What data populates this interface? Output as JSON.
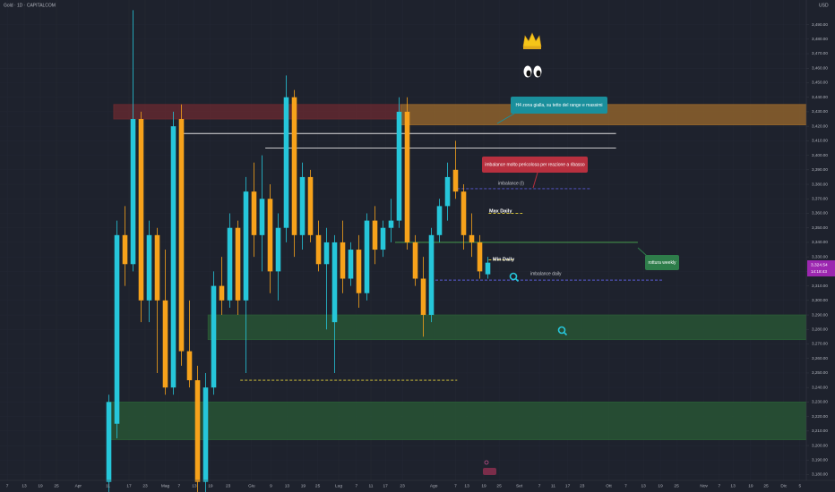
{
  "chart_data": {
    "type": "candlestick",
    "symbol": "Gold · 1D · CAPITALCOM",
    "currency": "USD",
    "up_color": "#26c6da",
    "down_color": "#f7a21b",
    "grid": true,
    "xlim": [
      -13.5,
      86.5
    ],
    "ylim": [
      3176,
      3507
    ],
    "x": [
      0,
      1,
      2,
      3,
      4,
      5,
      6,
      7,
      8,
      9,
      10,
      11,
      12,
      13,
      14,
      15,
      16,
      17,
      18,
      19,
      20,
      21,
      22,
      23,
      24,
      25,
      26,
      27,
      28,
      29,
      30,
      31,
      32,
      33,
      34,
      35,
      36,
      37,
      38,
      39,
      40,
      41,
      42,
      43,
      44,
      45,
      46,
      47
    ],
    "open": [
      3175,
      3215,
      3345,
      3325,
      3425,
      3300,
      3345,
      3300,
      3240,
      3425,
      3265,
      3245,
      3175,
      3240,
      3310,
      3300,
      3350,
      3300,
      3375,
      3345,
      3370,
      3320,
      3350,
      3440,
      3345,
      3385,
      3345,
      3325,
      3285,
      3340,
      3315,
      3335,
      3305,
      3355,
      3335,
      3350,
      3355,
      3430,
      3340,
      3315,
      3290,
      3345,
      3365,
      3390,
      3375,
      3345,
      3340,
      3318
    ],
    "high": [
      3235,
      3355,
      3365,
      3500,
      3430,
      3355,
      3350,
      3335,
      3430,
      3435,
      3300,
      3255,
      3250,
      3320,
      3330,
      3360,
      3355,
      3385,
      3395,
      3400,
      3380,
      3360,
      3455,
      3445,
      3395,
      3390,
      3355,
      3350,
      3345,
      3355,
      3340,
      3345,
      3360,
      3365,
      3355,
      3370,
      3440,
      3440,
      3345,
      3330,
      3350,
      3370,
      3395,
      3410,
      3380,
      3360,
      3345,
      3330
    ],
    "low": [
      3165,
      3205,
      3310,
      3320,
      3285,
      3285,
      3250,
      3235,
      3235,
      3255,
      3240,
      3155,
      3160,
      3235,
      3290,
      3295,
      3290,
      3250,
      3330,
      3320,
      3305,
      3300,
      3340,
      3330,
      3335,
      3340,
      3320,
      3280,
      3250,
      3305,
      3310,
      3295,
      3300,
      3325,
      3330,
      3340,
      3350,
      3335,
      3310,
      3275,
      3285,
      3340,
      3355,
      3370,
      3335,
      3330,
      3315,
      3315
    ],
    "close": [
      3230,
      3345,
      3325,
      3425,
      3300,
      3345,
      3300,
      3240,
      3420,
      3265,
      3245,
      3175,
      3240,
      3310,
      3300,
      3350,
      3300,
      3375,
      3345,
      3370,
      3320,
      3350,
      3440,
      3345,
      3385,
      3345,
      3325,
      3340,
      3340,
      3315,
      3335,
      3305,
      3355,
      3335,
      3350,
      3355,
      3430,
      3340,
      3315,
      3290,
      3345,
      3365,
      3385,
      3375,
      3345,
      3340,
      3320,
      3326
    ],
    "yticks": [
      {
        "value": 3180,
        "label": "3,180.00"
      },
      {
        "value": 3190,
        "label": "3,190.00"
      },
      {
        "value": 3200,
        "label": "3,200.00"
      },
      {
        "value": 3210,
        "label": "3,210.00"
      },
      {
        "value": 3220,
        "label": "3,220.00"
      },
      {
        "value": 3230,
        "label": "3,230.00"
      },
      {
        "value": 3240,
        "label": "3,240.00"
      },
      {
        "value": 3250,
        "label": "3,250.00"
      },
      {
        "value": 3260,
        "label": "3,260.00"
      },
      {
        "value": 3270,
        "label": "3,270.00"
      },
      {
        "value": 3280,
        "label": "3,280.00"
      },
      {
        "value": 3290,
        "label": "3,290.00"
      },
      {
        "value": 3300,
        "label": "3,300.00"
      },
      {
        "value": 3310,
        "label": "3,310.00"
      },
      {
        "value": 3320,
        "label": "3,320.00"
      },
      {
        "value": 3330,
        "label": "3,330.00"
      },
      {
        "value": 3340,
        "label": "3,340.00"
      },
      {
        "value": 3350,
        "label": "3,350.00"
      },
      {
        "value": 3360,
        "label": "3,360.00"
      },
      {
        "value": 3370,
        "label": "3,370.00"
      },
      {
        "value": 3380,
        "label": "3,380.00"
      },
      {
        "value": 3390,
        "label": "3,390.00"
      },
      {
        "value": 3400,
        "label": "3,400.00"
      },
      {
        "value": 3410,
        "label": "3,410.00"
      },
      {
        "value": 3420,
        "label": "3,420.00"
      },
      {
        "value": 3430,
        "label": "3,430.00"
      },
      {
        "value": 3440,
        "label": "3,440.00"
      },
      {
        "value": 3450,
        "label": "3,450.00"
      },
      {
        "value": 3460,
        "label": "3,460.00"
      },
      {
        "value": 3470,
        "label": "3,470.00"
      },
      {
        "value": 3480,
        "label": "3,480.00"
      },
      {
        "value": 3490,
        "label": "3,490.00"
      }
    ],
    "xticks": [
      {
        "value": -12.6,
        "label": "7"
      },
      {
        "value": -10.5,
        "label": "13"
      },
      {
        "value": -8.5,
        "label": "19"
      },
      {
        "value": -6.5,
        "label": "25"
      },
      {
        "value": -3.8,
        "label": "Apr"
      },
      {
        "value": -0.1,
        "label": "11"
      },
      {
        "value": 2.5,
        "label": "17"
      },
      {
        "value": 4.5,
        "label": "23"
      },
      {
        "value": 7,
        "label": "Mag"
      },
      {
        "value": 8.7,
        "label": "7"
      },
      {
        "value": 10.6,
        "label": "13"
      },
      {
        "value": 12.6,
        "label": "19"
      },
      {
        "value": 14.8,
        "label": "23"
      },
      {
        "value": 17.7,
        "label": "Giu"
      },
      {
        "value": 20.1,
        "label": "9"
      },
      {
        "value": 22.1,
        "label": "13"
      },
      {
        "value": 24.1,
        "label": "19"
      },
      {
        "value": 25.9,
        "label": "25"
      },
      {
        "value": 28.5,
        "label": "Lug"
      },
      {
        "value": 30.7,
        "label": "7"
      },
      {
        "value": 32.5,
        "label": "11"
      },
      {
        "value": 34.3,
        "label": "17"
      },
      {
        "value": 36.4,
        "label": "23"
      },
      {
        "value": 40.3,
        "label": "Ago"
      },
      {
        "value": 43,
        "label": "7"
      },
      {
        "value": 44.4,
        "label": "13"
      },
      {
        "value": 46.5,
        "label": "19"
      },
      {
        "value": 48.4,
        "label": "25"
      },
      {
        "value": 50.9,
        "label": "Set"
      },
      {
        "value": 53.4,
        "label": "7"
      },
      {
        "value": 55.1,
        "label": "11"
      },
      {
        "value": 56.9,
        "label": "17"
      },
      {
        "value": 58.7,
        "label": "23"
      },
      {
        "value": 62,
        "label": "Ott"
      },
      {
        "value": 64.1,
        "label": "7"
      },
      {
        "value": 66.3,
        "label": "13"
      },
      {
        "value": 68.4,
        "label": "19"
      },
      {
        "value": 70.4,
        "label": "25"
      },
      {
        "value": 73.8,
        "label": "Nov"
      },
      {
        "value": 75.7,
        "label": "7"
      },
      {
        "value": 77.4,
        "label": "13"
      },
      {
        "value": 79.6,
        "label": "19"
      },
      {
        "value": 81.5,
        "label": "25"
      },
      {
        "value": 83.7,
        "label": "Dic"
      },
      {
        "value": 85.7,
        "label": "5"
      }
    ],
    "zones": [
      {
        "from": 3425,
        "to": 3435,
        "x_from": 0.6,
        "x_to": 36.2,
        "color": "#6b2a30"
      },
      {
        "from": 3421,
        "to": 3435,
        "x_from": 36.2,
        "color": "#9c6a2c"
      },
      {
        "from": 3273,
        "to": 3290,
        "x_from": 12.3,
        "color": "#2a5b36"
      },
      {
        "from": 3204,
        "to": 3230,
        "x_from": -0.2,
        "color": "#2a5b36"
      }
    ],
    "levels": [
      {
        "value": 3415,
        "x_from": 9.2,
        "x_to": 62.9,
        "color": "#e0e0e0",
        "style": "solid"
      },
      {
        "value": 3405,
        "x_from": 19.4,
        "x_to": 62.9,
        "color": "#e0e0e0",
        "style": "solid"
      },
      {
        "value": 3340,
        "x_from": 35.5,
        "x_to": 65.6,
        "color": "#4caf50",
        "style": "solid"
      },
      {
        "value": 3360,
        "x_from": 47.1,
        "x_to": 51.3,
        "color": "#e6d23a",
        "style": "dashed"
      },
      {
        "value": 3328,
        "x_from": 47.1,
        "x_to": 50.2,
        "color": "#e6d23a",
        "style": "dashed"
      },
      {
        "value": 3245,
        "x_from": 16.3,
        "x_to": 43.2,
        "color": "#e6d23a",
        "style": "dashed"
      },
      {
        "value": 3377,
        "x_from": 43.2,
        "x_to": 59.8,
        "color": "#5b5bd6",
        "style": "dashed"
      },
      {
        "value": 3314,
        "x_from": 40.5,
        "x_to": 68.7,
        "color": "#5b5bd6",
        "style": "dashed"
      }
    ],
    "annotations": [
      {
        "text": "H4 zona gialla, su tetto del range e massimi",
        "style": "callout",
        "color": "#1a8f9c"
      },
      {
        "text": "imbalance molto pericolosa per reazione a ribasso",
        "style": "callout",
        "color": "#b8303f"
      },
      {
        "text": "imbalance (I)",
        "style": "plain"
      },
      {
        "text": "Max Daily",
        "style": "bold"
      },
      {
        "text": "Min Daily",
        "style": "bold"
      },
      {
        "text": "imbalance daily",
        "style": "plain"
      },
      {
        "text": "rottura weekly",
        "style": "callout",
        "color": "#2e7d4a"
      }
    ],
    "last_price": {
      "value": 3324.54,
      "label": "3,324.54"
    },
    "countdown": "14:18:43"
  }
}
